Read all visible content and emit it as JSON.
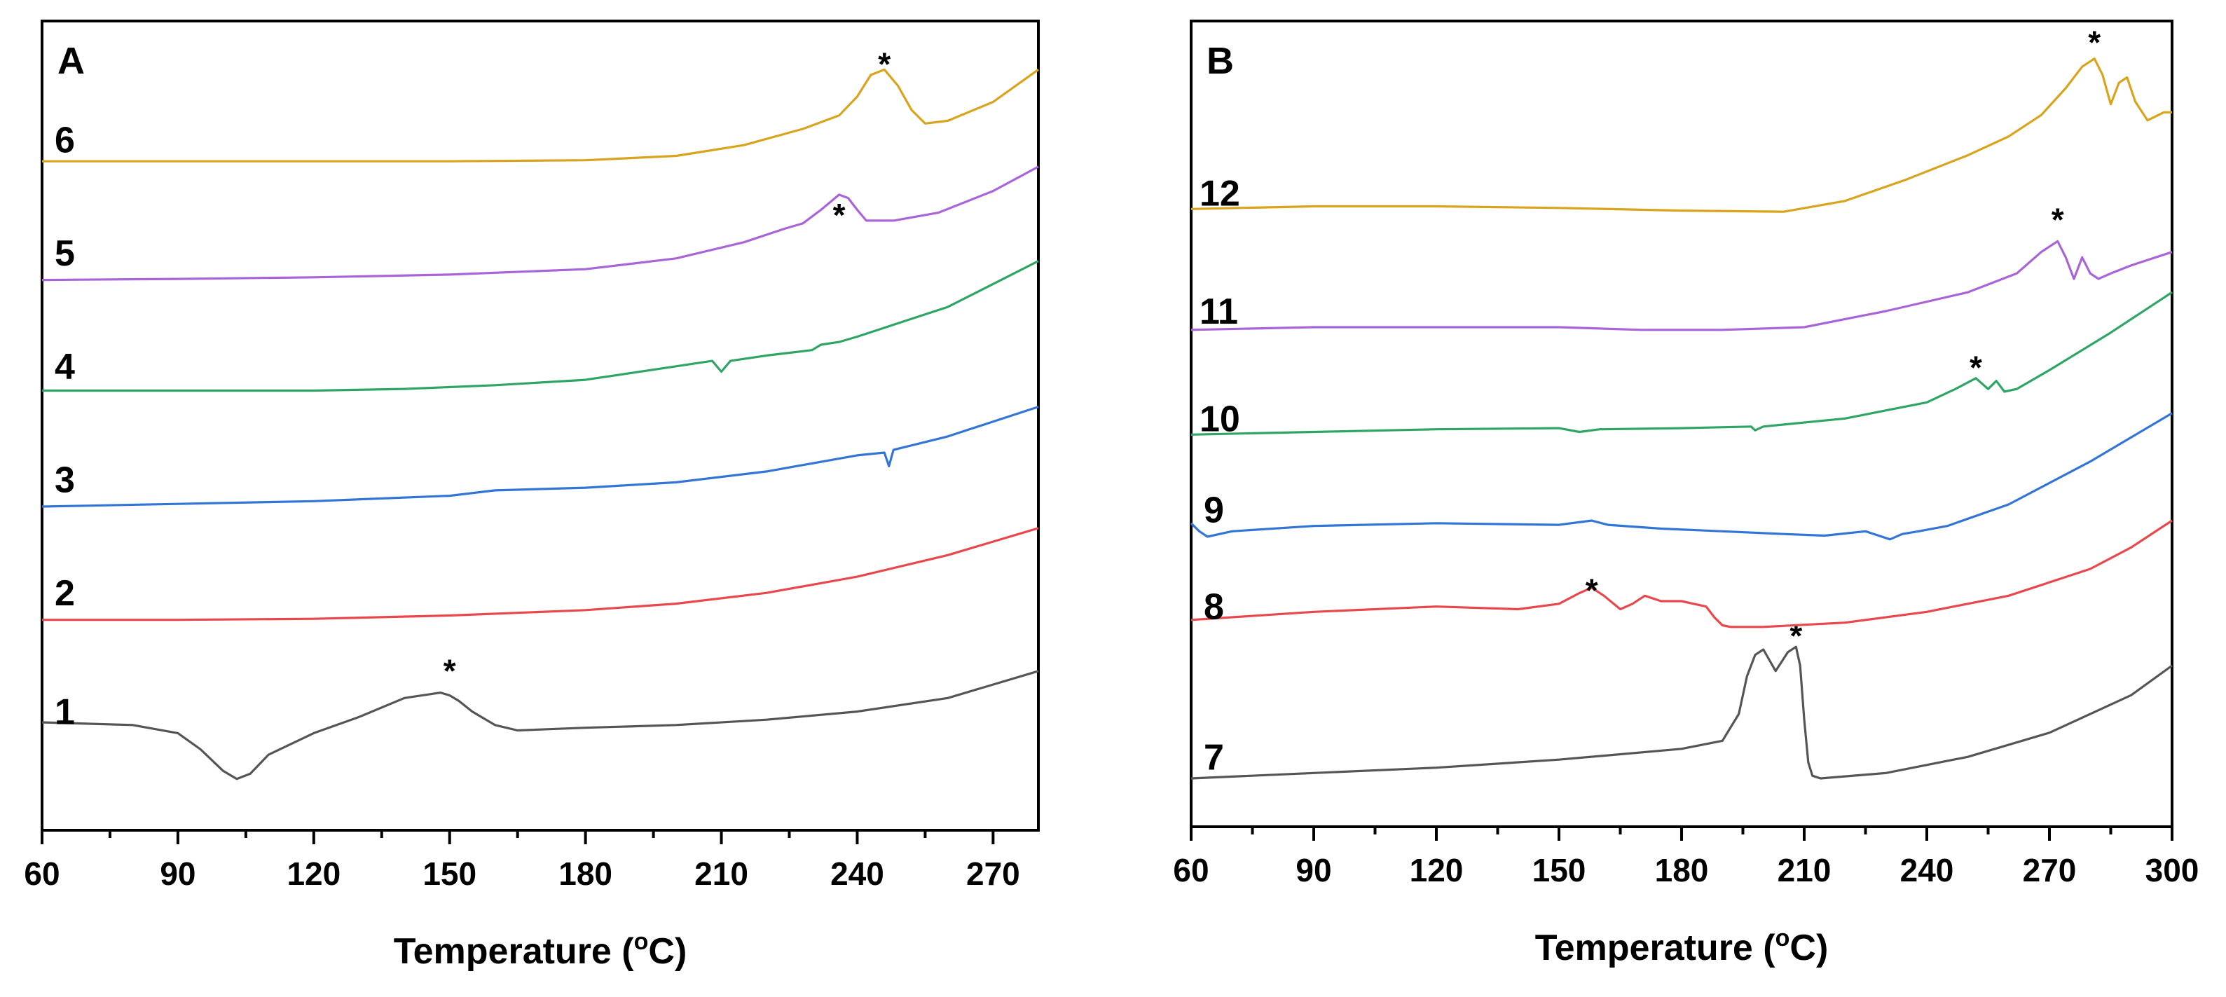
{
  "chart_data": [
    {
      "type": "line",
      "panel_label": "A",
      "xlabel": "Temperature (",
      "xlabel_sup": "o",
      "xlabel_unit": "C)",
      "ylabel": "",
      "xlim": [
        60,
        280
      ],
      "ylim": [
        0,
        15
      ],
      "xticks": [
        "60",
        "90",
        "120",
        "150",
        "180",
        "210",
        "240",
        "270"
      ],
      "yticks": [],
      "grid": false,
      "series": [
        {
          "name": "1",
          "label": "1",
          "color": "#555555",
          "label_y": 2.2,
          "peak_label": "*",
          "peak_x": 150,
          "peak_y": 2.9,
          "x": [
            60,
            80,
            90,
            95,
            100,
            103,
            106,
            110,
            120,
            130,
            140,
            148,
            150,
            152,
            155,
            160,
            165,
            180,
            200,
            220,
            240,
            260,
            280
          ],
          "y": [
            2.0,
            1.95,
            1.8,
            1.5,
            1.1,
            0.95,
            1.05,
            1.4,
            1.8,
            2.1,
            2.45,
            2.55,
            2.5,
            2.4,
            2.2,
            1.95,
            1.85,
            1.9,
            1.95,
            2.05,
            2.2,
            2.45,
            2.95
          ]
        },
        {
          "name": "2",
          "label": "2",
          "color": "#e8474c",
          "label_y": 4.4,
          "peak_label": "",
          "x": [
            60,
            90,
            120,
            150,
            180,
            200,
            220,
            240,
            260,
            280
          ],
          "y": [
            3.9,
            3.9,
            3.92,
            3.98,
            4.08,
            4.2,
            4.4,
            4.7,
            5.1,
            5.6
          ]
        },
        {
          "name": "3",
          "label": "3",
          "color": "#3275d6",
          "label_y": 6.5,
          "peak_label": "",
          "x": [
            60,
            90,
            120,
            150,
            160,
            180,
            200,
            220,
            240,
            246,
            247,
            248,
            260,
            280
          ],
          "y": [
            6.0,
            6.05,
            6.1,
            6.2,
            6.3,
            6.35,
            6.45,
            6.65,
            6.95,
            7.0,
            6.75,
            7.05,
            7.3,
            7.85
          ]
        },
        {
          "name": "4",
          "label": "4",
          "color": "#2fa565",
          "label_y": 8.6,
          "peak_label": "",
          "x": [
            60,
            90,
            120,
            140,
            160,
            180,
            200,
            208,
            210,
            212,
            220,
            230,
            232,
            236,
            240,
            260,
            280
          ],
          "y": [
            8.15,
            8.15,
            8.15,
            8.18,
            8.25,
            8.35,
            8.6,
            8.7,
            8.5,
            8.7,
            8.8,
            8.9,
            9.0,
            9.05,
            9.15,
            9.7,
            10.55
          ]
        },
        {
          "name": "5",
          "label": "5",
          "color": "#a864d8",
          "label_y": 10.7,
          "peak_label": "*",
          "peak_x": 236,
          "peak_y": 11.35,
          "x": [
            60,
            90,
            120,
            150,
            180,
            200,
            215,
            224,
            228,
            232,
            236,
            238,
            240,
            242,
            248,
            258,
            270,
            280
          ],
          "y": [
            10.2,
            10.22,
            10.25,
            10.3,
            10.4,
            10.6,
            10.9,
            11.15,
            11.25,
            11.5,
            11.78,
            11.72,
            11.5,
            11.3,
            11.3,
            11.45,
            11.85,
            12.3
          ]
        },
        {
          "name": "6",
          "label": "6",
          "color": "#d9a31c",
          "label_y": 12.8,
          "peak_label": "*",
          "peak_x": 246,
          "peak_y": 14.15,
          "x": [
            60,
            90,
            120,
            150,
            180,
            200,
            215,
            228,
            236,
            240,
            243,
            246,
            249,
            252,
            255,
            260,
            270,
            280
          ],
          "y": [
            12.4,
            12.4,
            12.4,
            12.4,
            12.42,
            12.5,
            12.7,
            13.0,
            13.25,
            13.6,
            14.0,
            14.1,
            13.8,
            13.35,
            13.1,
            13.15,
            13.5,
            14.1
          ]
        }
      ]
    },
    {
      "type": "line",
      "panel_label": "B",
      "xlabel": "Temperature (",
      "xlabel_sup": "o",
      "xlabel_unit": "C)",
      "ylabel": "",
      "xlim": [
        60,
        300
      ],
      "ylim": [
        0,
        15
      ],
      "xticks": [
        "60",
        "90",
        "120",
        "150",
        "180",
        "210",
        "240",
        "270",
        "300"
      ],
      "yticks": [],
      "grid": false,
      "series": [
        {
          "name": "7",
          "label": "7",
          "color": "#555555",
          "label_y": 1.3,
          "peak_label": "*",
          "peak_x": 208,
          "peak_y": 3.5,
          "x": [
            60,
            90,
            120,
            150,
            180,
            190,
            194,
            196,
            198,
            200,
            203,
            206,
            208,
            209,
            210,
            211,
            212,
            214,
            230,
            250,
            270,
            290,
            300
          ],
          "y": [
            0.9,
            1.0,
            1.1,
            1.25,
            1.45,
            1.6,
            2.1,
            2.8,
            3.2,
            3.3,
            2.9,
            3.25,
            3.35,
            3.0,
            2.0,
            1.2,
            0.95,
            0.9,
            1.0,
            1.3,
            1.75,
            2.45,
            3.0
          ]
        },
        {
          "name": "8",
          "label": "8",
          "color": "#e8474c",
          "label_y": 4.1,
          "peak_label": "*",
          "peak_x": 158,
          "peak_y": 4.35,
          "x": [
            60,
            90,
            120,
            140,
            150,
            155,
            158,
            161,
            165,
            168,
            171,
            175,
            180,
            186,
            188,
            190,
            192,
            200,
            220,
            240,
            260,
            280,
            290,
            300
          ],
          "y": [
            3.85,
            4.0,
            4.1,
            4.05,
            4.15,
            4.35,
            4.45,
            4.3,
            4.05,
            4.15,
            4.3,
            4.2,
            4.2,
            4.1,
            3.9,
            3.75,
            3.72,
            3.72,
            3.8,
            4.0,
            4.3,
            4.8,
            5.2,
            5.7
          ]
        },
        {
          "name": "9",
          "label": "9",
          "color": "#3275d6",
          "label_y": 5.9,
          "peak_label": "",
          "x": [
            60,
            62,
            64,
            70,
            90,
            120,
            150,
            158,
            162,
            175,
            190,
            205,
            215,
            225,
            231,
            234,
            238,
            245,
            260,
            280,
            300
          ],
          "y": [
            5.65,
            5.5,
            5.4,
            5.5,
            5.6,
            5.65,
            5.62,
            5.7,
            5.62,
            5.55,
            5.5,
            5.45,
            5.42,
            5.5,
            5.35,
            5.45,
            5.5,
            5.6,
            6.0,
            6.8,
            7.7
          ]
        },
        {
          "name": "10",
          "label": "10",
          "color": "#2fa565",
          "label_y": 7.6,
          "peak_label": "*",
          "peak_x": 252,
          "peak_y": 8.5,
          "x": [
            60,
            90,
            120,
            150,
            155,
            160,
            180,
            197,
            198,
            200,
            220,
            240,
            247,
            252,
            255,
            257,
            259,
            262,
            270,
            285,
            300
          ],
          "y": [
            7.3,
            7.35,
            7.4,
            7.42,
            7.35,
            7.4,
            7.42,
            7.45,
            7.38,
            7.45,
            7.6,
            7.9,
            8.15,
            8.35,
            8.15,
            8.3,
            8.1,
            8.15,
            8.5,
            9.2,
            9.95
          ]
        },
        {
          "name": "11",
          "label": "11",
          "color": "#a864d8",
          "label_y": 9.6,
          "peak_label": "*",
          "peak_x": 272,
          "peak_y": 11.25,
          "x": [
            60,
            90,
            120,
            150,
            170,
            190,
            210,
            230,
            250,
            262,
            268,
            272,
            274,
            276,
            278,
            280,
            282,
            285,
            290,
            300
          ],
          "y": [
            9.25,
            9.3,
            9.3,
            9.3,
            9.25,
            9.25,
            9.3,
            9.6,
            9.95,
            10.3,
            10.7,
            10.9,
            10.6,
            10.2,
            10.6,
            10.3,
            10.2,
            10.3,
            10.45,
            10.7
          ]
        },
        {
          "name": "12",
          "label": "12",
          "color": "#d9a31c",
          "label_y": 11.8,
          "peak_label": "*",
          "peak_x": 281,
          "peak_y": 14.55,
          "x": [
            60,
            90,
            120,
            150,
            180,
            205,
            220,
            235,
            250,
            260,
            268,
            274,
            278,
            281,
            283,
            285,
            287,
            289,
            291,
            294,
            298,
            300
          ],
          "y": [
            11.5,
            11.55,
            11.55,
            11.52,
            11.47,
            11.45,
            11.65,
            12.05,
            12.5,
            12.85,
            13.25,
            13.75,
            14.15,
            14.3,
            14.0,
            13.45,
            13.85,
            13.95,
            13.5,
            13.15,
            13.3,
            13.3
          ]
        }
      ]
    }
  ]
}
